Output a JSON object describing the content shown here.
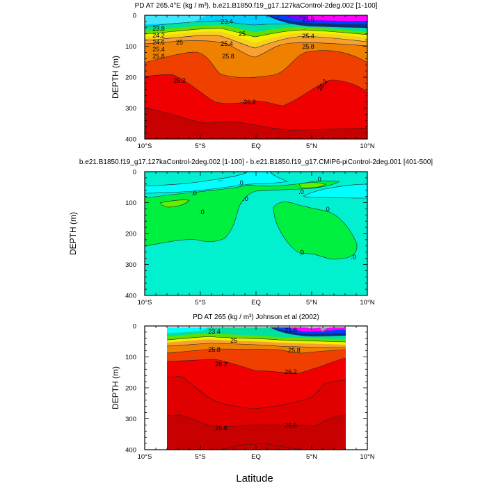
{
  "chart_data": [
    {
      "type": "heatmap",
      "subtype": "filled-contour",
      "title": "PD AT 265.4°E (kg / m³), b.e21.B1850.f19_g17.127kaControl-2deg.002 [1-100]",
      "ylabel": "DEPTH (m)",
      "xlabel": "",
      "xlim": [
        -10,
        10
      ],
      "ylim": [
        400,
        0
      ],
      "x_tick_labels": [
        "10°S",
        "5°S",
        "EQ",
        "5°N",
        "10°N"
      ],
      "y_tick_labels": [
        "0",
        "100",
        "200",
        "300",
        "400"
      ],
      "contour_labels": [
        "23.8",
        "24.2",
        "24.6",
        "25",
        "25.4",
        "25.8",
        "23.4",
        "25",
        "25.4",
        "25.8",
        "21.8",
        "25.4",
        "25.8",
        "26.2",
        "26.2",
        "26.2"
      ],
      "colormap": [
        "#c80000",
        "#f00000",
        "#f04000",
        "#f08000",
        "#f8a030",
        "#f8d020",
        "#f0f000",
        "#60e000",
        "#00e0a0",
        "#00d0ff",
        "#0040ff",
        "#8000ff",
        "#ff00ff"
      ]
    },
    {
      "type": "heatmap",
      "subtype": "filled-contour",
      "title": "b.e21.B1850.f19_g17.127kaControl-2deg.002 [1-100] - b.e21.B1850.f19_g17.CMIP6-piControl-2deg.001 [401-500]",
      "ylabel": "DEPTH (m)",
      "xlim": [
        -10,
        10
      ],
      "ylim": [
        400,
        0
      ],
      "x_tick_labels": [
        "10°S",
        "5°S",
        "EQ",
        "5°N",
        "10°N"
      ],
      "y_tick_labels": [
        "0",
        "100",
        "200",
        "300",
        "400"
      ],
      "contour_labels": [
        ".0",
        ".0",
        ".0",
        ".0",
        ".0",
        ".0",
        ".0",
        ".0",
        ".0"
      ],
      "colormap": [
        "#00ffff",
        "#00f0d0",
        "#00f040",
        "#60f000"
      ]
    },
    {
      "type": "heatmap",
      "subtype": "filled-contour",
      "title": "PD AT 265 (kg / m³) Johnson et al (2002)",
      "ylabel": "DEPTH (m)",
      "xlabel": "Latitude",
      "xlim": [
        -10,
        10
      ],
      "data_xrange": [
        -8,
        8
      ],
      "ylim": [
        400,
        0
      ],
      "x_tick_labels": [
        "10°S",
        "5°S",
        "EQ",
        "5°N",
        "10°N"
      ],
      "y_tick_labels": [
        "0",
        "100",
        "200",
        "300",
        "400"
      ],
      "contour_labels": [
        "23.4",
        "25",
        "25.8",
        "21.8",
        "25.8",
        "26.2",
        "26.2",
        "26.6",
        "26.6"
      ],
      "colormap": [
        "#c80000",
        "#e00000",
        "#f00000",
        "#f04000",
        "#f08000",
        "#f0f000",
        "#00e0a0",
        "#00ffff",
        "#0040ff",
        "#ff00ff",
        "#a0a0a0"
      ]
    }
  ]
}
